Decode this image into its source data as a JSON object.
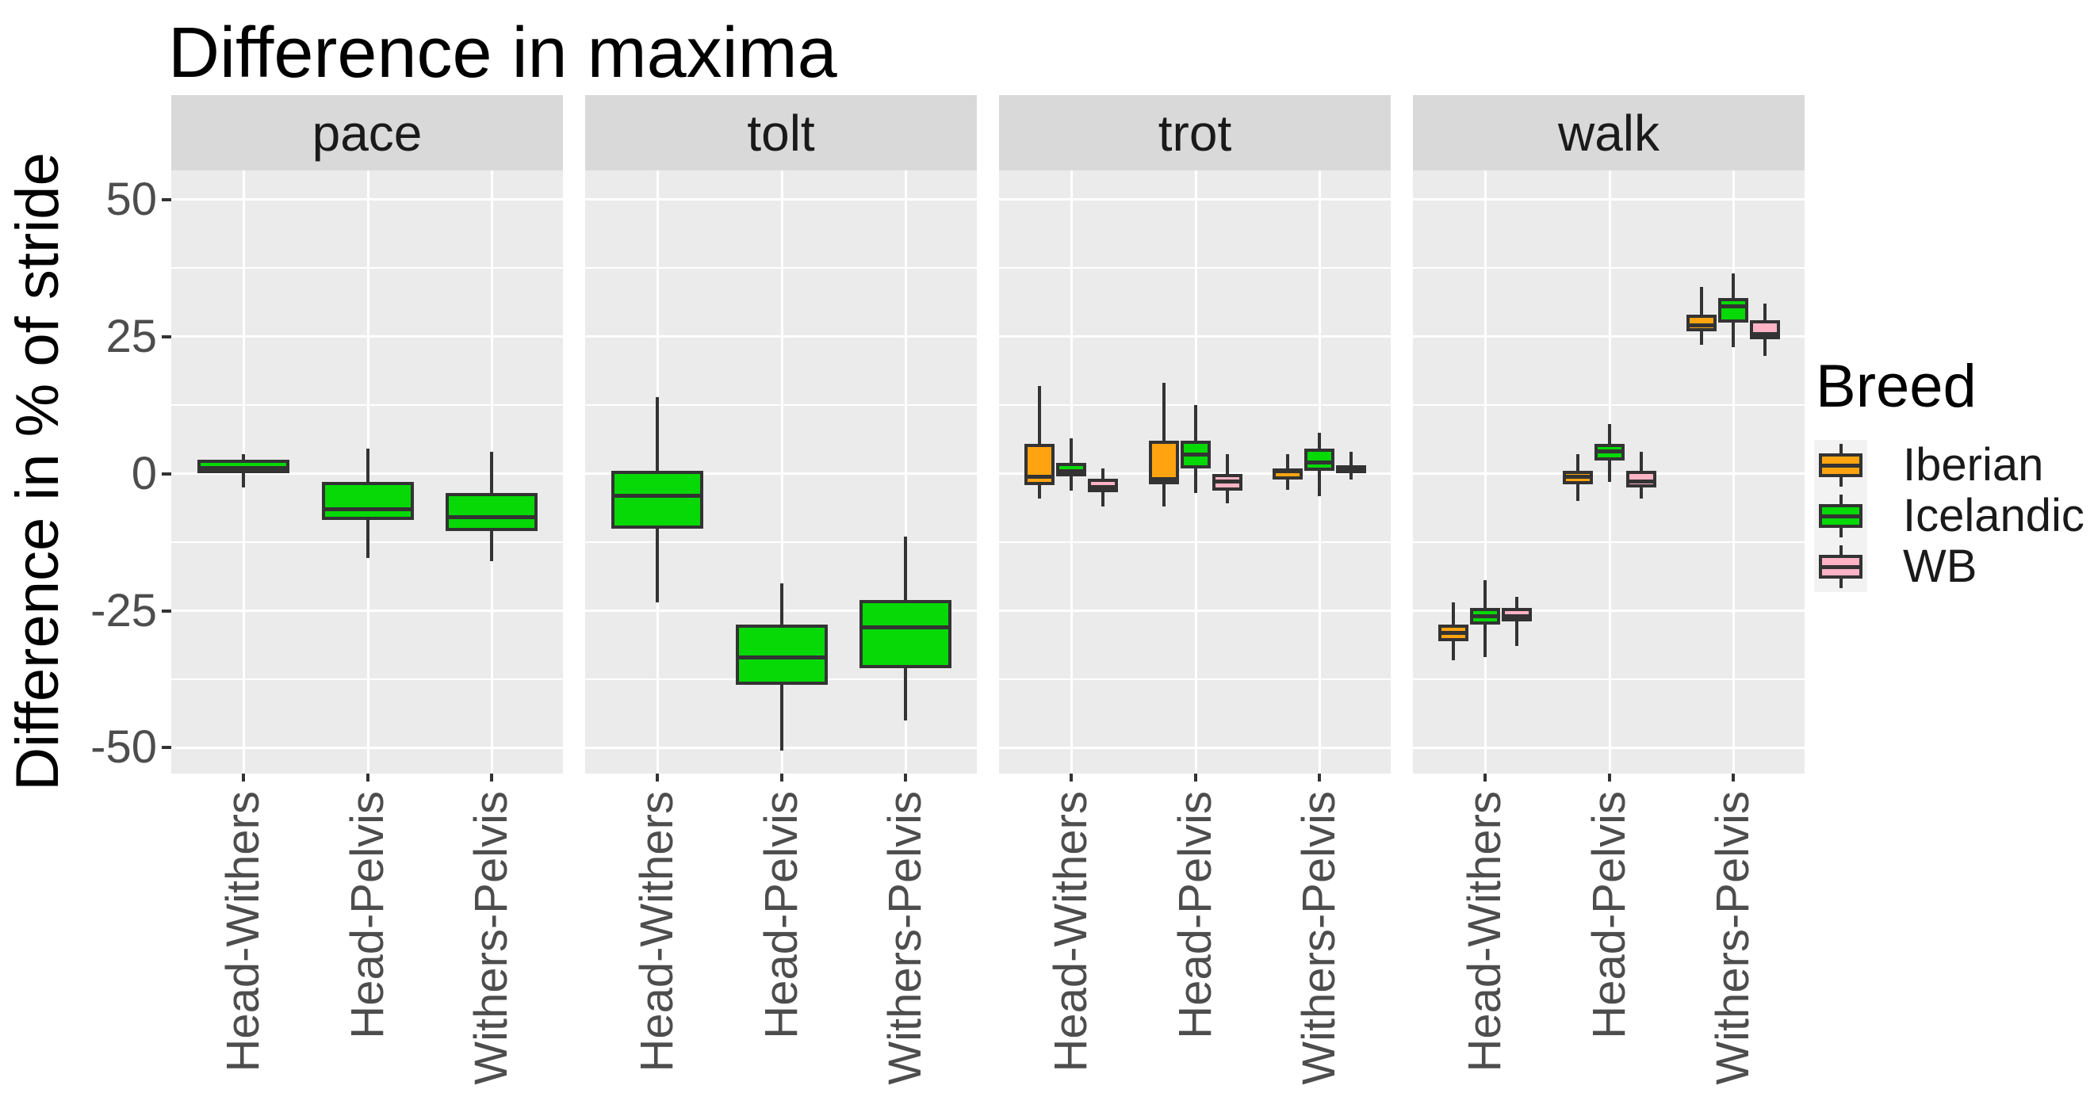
{
  "colors": {
    "background": "#FFFFFF",
    "panel_bg": "#EBEBEB",
    "strip_bg": "#D9D9D9",
    "grid": "#FFFFFF",
    "box_border": "#333333",
    "tick_text": "#4D4D4D",
    "title_text": "#000000",
    "legend_key_bg": "#F2F2F2"
  },
  "chart_data": {
    "type": "boxplot",
    "title": "Difference in maxima",
    "ylabel": "Difference in % of stride",
    "xlabel": "",
    "facets": [
      "pace",
      "tolt",
      "trot",
      "walk"
    ],
    "categories": [
      "Head-Withers",
      "Head-Pelvis",
      "Withers-Pelvis"
    ],
    "ylim": [
      -54.7,
      55.3
    ],
    "ytick_values": [
      50,
      25,
      0,
      -25,
      -50
    ],
    "ytick_labels": [
      "50",
      "25",
      "0",
      "-25",
      "-50"
    ],
    "yminor_values": [
      37.5,
      12.5,
      -12.5,
      -37.5
    ],
    "grid": "on",
    "legend": {
      "title": "Breed",
      "position": "right",
      "items": [
        {
          "label": "Iberian",
          "color": "#FFA410"
        },
        {
          "label": "Icelandic",
          "color": "#06D906"
        },
        {
          "label": "WB",
          "color": "#FFB3C5"
        }
      ]
    },
    "boxes": [
      {
        "facet": "pace",
        "category": "Head-Withers",
        "breed": "Icelandic",
        "low": -2.5,
        "q1": 0,
        "median": 1,
        "q3": 2.5,
        "high": 3.5
      },
      {
        "facet": "pace",
        "category": "Head-Pelvis",
        "breed": "Icelandic",
        "low": -15.5,
        "q1": -8.5,
        "median": -6.5,
        "q3": -1.5,
        "high": 4.5
      },
      {
        "facet": "pace",
        "category": "Withers-Pelvis",
        "breed": "Icelandic",
        "low": -16,
        "q1": -10.5,
        "median": -8,
        "q3": -3.5,
        "high": 4
      },
      {
        "facet": "tolt",
        "category": "Head-Withers",
        "breed": "Icelandic",
        "low": -23.5,
        "q1": -10,
        "median": -4,
        "q3": 0.5,
        "high": 14
      },
      {
        "facet": "tolt",
        "category": "Head-Pelvis",
        "breed": "Icelandic",
        "low": -50.5,
        "q1": -38.5,
        "median": -33.5,
        "q3": -27.5,
        "high": -20
      },
      {
        "facet": "tolt",
        "category": "Withers-Pelvis",
        "breed": "Icelandic",
        "low": -45,
        "q1": -35.5,
        "median": -28,
        "q3": -23,
        "high": -11.5
      },
      {
        "facet": "trot",
        "category": "Head-Withers",
        "breed": "Iberian",
        "low": -4.5,
        "q1": -2,
        "median": -0.5,
        "q3": 5.5,
        "high": 16
      },
      {
        "facet": "trot",
        "category": "Head-Withers",
        "breed": "Icelandic",
        "low": -3,
        "q1": -0.5,
        "median": 0.5,
        "q3": 2,
        "high": 6.5
      },
      {
        "facet": "trot",
        "category": "Head-Withers",
        "breed": "WB",
        "low": -6,
        "q1": -3.5,
        "median": -2.5,
        "q3": -1,
        "high": 1
      },
      {
        "facet": "trot",
        "category": "Head-Pelvis",
        "breed": "Iberian",
        "low": -6,
        "q1": -2,
        "median": -1,
        "q3": 6,
        "high": 16.5
      },
      {
        "facet": "trot",
        "category": "Head-Pelvis",
        "breed": "Icelandic",
        "low": -3.5,
        "q1": 1,
        "median": 3.5,
        "q3": 6,
        "high": 12.5
      },
      {
        "facet": "trot",
        "category": "Head-Pelvis",
        "breed": "WB",
        "low": -5.5,
        "q1": -3,
        "median": -1.5,
        "q3": 0,
        "high": 3.5
      },
      {
        "facet": "trot",
        "category": "Withers-Pelvis",
        "breed": "Iberian",
        "low": -3,
        "q1": -1,
        "median": 0.5,
        "q3": 1,
        "high": 3.5
      },
      {
        "facet": "trot",
        "category": "Withers-Pelvis",
        "breed": "Icelandic",
        "low": -4,
        "q1": 0.5,
        "median": 2,
        "q3": 4.5,
        "high": 7.5
      },
      {
        "facet": "trot",
        "category": "Withers-Pelvis",
        "breed": "WB",
        "low": -1,
        "q1": 0,
        "median": 1,
        "q3": 1.5,
        "high": 4
      },
      {
        "facet": "walk",
        "category": "Head-Withers",
        "breed": "Iberian",
        "low": -34,
        "q1": -30.5,
        "median": -29,
        "q3": -27.5,
        "high": -23.5
      },
      {
        "facet": "walk",
        "category": "Head-Withers",
        "breed": "Icelandic",
        "low": -33.5,
        "q1": -27.5,
        "median": -26,
        "q3": -24.5,
        "high": -19.5
      },
      {
        "facet": "walk",
        "category": "Head-Withers",
        "breed": "WB",
        "low": -31.5,
        "q1": -27,
        "median": -26,
        "q3": -24.5,
        "high": -22.5
      },
      {
        "facet": "walk",
        "category": "Head-Pelvis",
        "breed": "Iberian",
        "low": -5,
        "q1": -2,
        "median": -0.5,
        "q3": 0.5,
        "high": 3.5
      },
      {
        "facet": "walk",
        "category": "Head-Pelvis",
        "breed": "Icelandic",
        "low": -1.5,
        "q1": 2.5,
        "median": 4,
        "q3": 5.5,
        "high": 9
      },
      {
        "facet": "walk",
        "category": "Head-Pelvis",
        "breed": "WB",
        "low": -4.5,
        "q1": -2.5,
        "median": -1.5,
        "q3": 0.5,
        "high": 4
      },
      {
        "facet": "walk",
        "category": "Withers-Pelvis",
        "breed": "Iberian",
        "low": 23.5,
        "q1": 26,
        "median": 27,
        "q3": 29,
        "high": 34
      },
      {
        "facet": "walk",
        "category": "Withers-Pelvis",
        "breed": "Icelandic",
        "low": 23,
        "q1": 27.5,
        "median": 30.5,
        "q3": 32,
        "high": 36.5
      },
      {
        "facet": "walk",
        "category": "Withers-Pelvis",
        "breed": "WB",
        "low": 21.5,
        "q1": 24.5,
        "median": 25.5,
        "q3": 28,
        "high": 31
      }
    ]
  }
}
